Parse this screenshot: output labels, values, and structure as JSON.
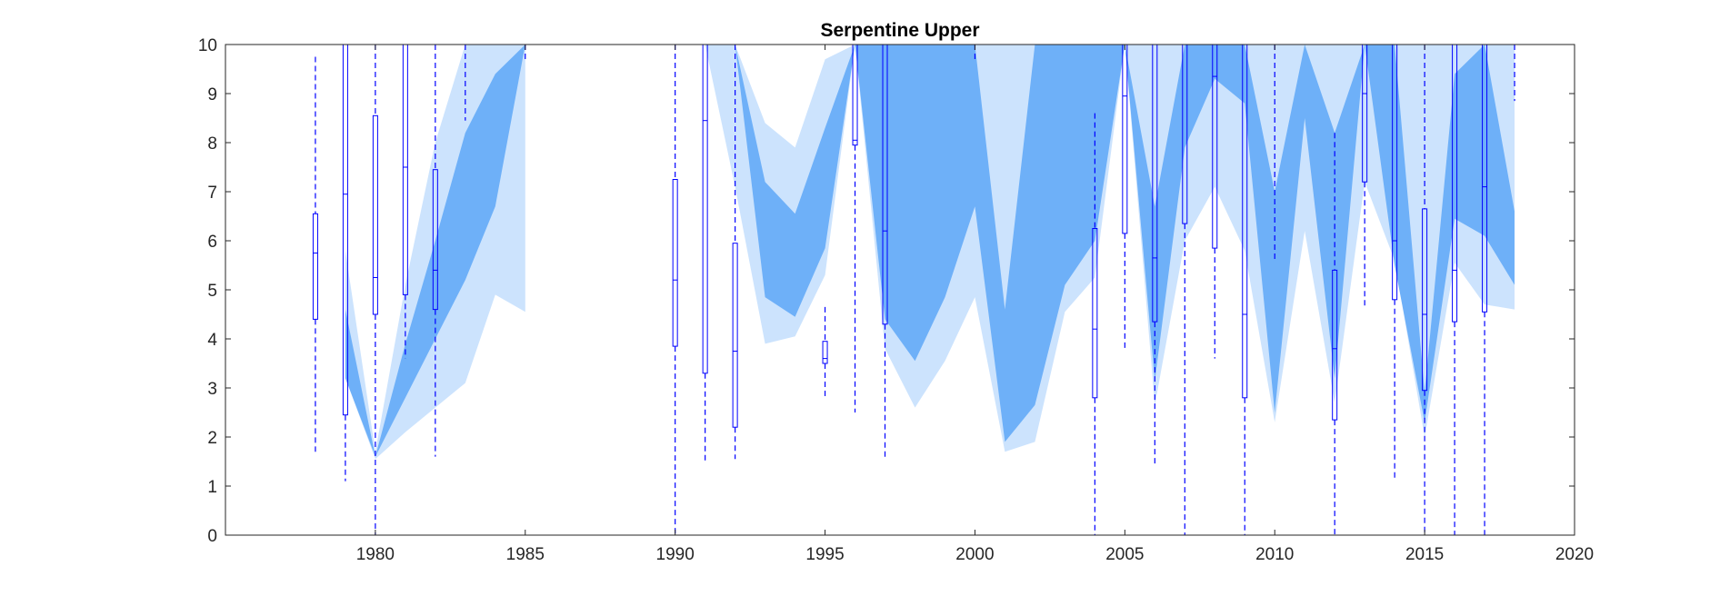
{
  "chart_data": {
    "type": "area",
    "title": "Serpentine Upper",
    "xlabel": "",
    "ylabel": "",
    "xlim": [
      1975,
      2020
    ],
    "ylim": [
      0,
      10
    ],
    "grid": false,
    "legend": "none",
    "x_ticks": [
      1980,
      1985,
      1990,
      1995,
      2000,
      2005,
      2010,
      2015,
      2020
    ],
    "y_ticks": [
      0,
      1,
      2,
      3,
      4,
      5,
      6,
      7,
      8,
      9,
      10
    ],
    "colors": {
      "outer_band": "#cce3fd",
      "inner_band": "#6eb0f8",
      "boxplot": "#0000ff",
      "axes": "#262626"
    },
    "bands": [
      {
        "name": "outer",
        "segments": [
          {
            "x": [
              1979,
              1980,
              1981,
              1982,
              1983,
              1984,
              1985
            ],
            "upper": [
              5.8,
              1.7,
              5.1,
              8.0,
              10,
              10,
              10
            ],
            "lower": [
              3.2,
              1.55,
              2.1,
              2.6,
              3.1,
              4.9,
              4.55
            ]
          },
          {
            "x": [
              1990,
              1991,
              1992,
              1993,
              1994,
              1995,
              1996,
              1997,
              1998,
              1999,
              2000,
              2001,
              2002,
              2003,
              2004,
              2005,
              2006,
              2007,
              2008,
              2009,
              2010,
              2011,
              2012,
              2013,
              2014,
              2015,
              2016,
              2017,
              2018
            ],
            "upper": [
              6.0,
              10,
              10,
              8.4,
              7.9,
              9.7,
              10,
              10,
              10,
              10,
              10,
              10,
              10,
              10,
              10,
              10,
              10,
              10,
              10,
              10,
              10,
              10,
              10,
              10,
              10,
              10,
              10,
              10,
              10
            ],
            "lower": [
              6.0,
              10,
              7.1,
              3.9,
              4.05,
              5.3,
              10,
              3.8,
              2.6,
              3.55,
              4.85,
              1.7,
              1.9,
              4.55,
              5.25,
              10,
              2.65,
              6.0,
              7.1,
              5.8,
              2.3,
              6.2,
              2.7,
              7.2,
              5.6,
              2.0,
              5.55,
              4.7,
              4.6
            ]
          }
        ]
      },
      {
        "name": "inner",
        "segments": [
          {
            "x": [
              1979,
              1980,
              1981,
              1982,
              1983,
              1984,
              1985
            ],
            "upper": [
              4.6,
              1.6,
              3.9,
              6.0,
              8.2,
              9.4,
              10
            ],
            "lower": [
              3.2,
              1.6,
              2.8,
              4.0,
              5.2,
              6.7,
              10
            ]
          },
          {
            "x": [
              1992,
              1993,
              1994,
              1995,
              1996,
              1997,
              1998,
              1999,
              2000,
              2001,
              2002,
              2003,
              2004,
              2005,
              2006,
              2007,
              2008,
              2009,
              2010,
              2011,
              2012,
              2013,
              2014,
              2015,
              2016,
              2017,
              2018
            ],
            "upper": [
              10,
              7.2,
              6.55,
              8.3,
              10,
              10,
              10,
              10,
              10,
              4.6,
              10,
              10,
              10,
              10,
              6.7,
              10,
              10,
              10,
              7.0,
              10,
              8.2,
              10,
              10,
              2.9,
              9.4,
              10,
              6.6
            ],
            "lower": [
              10,
              4.85,
              4.45,
              5.85,
              10,
              4.4,
              3.55,
              4.85,
              6.7,
              1.9,
              2.65,
              5.1,
              6.0,
              10,
              3.15,
              7.9,
              9.3,
              8.8,
              2.5,
              8.5,
              3.2,
              10,
              5.5,
              2.3,
              6.45,
              6.1,
              5.1
            ]
          }
        ]
      }
    ],
    "boxplots": [
      {
        "x": 1978,
        "whisker_low": 1.7,
        "q1": 4.4,
        "median": 5.75,
        "q3": 6.55,
        "whisker_high": 9.75
      },
      {
        "x": 1979,
        "whisker_low": 1.1,
        "q1": 2.45,
        "median": 6.95,
        "q3": 10,
        "whisker_high": 10
      },
      {
        "x": 1980,
        "whisker_low": 0,
        "q1": 4.5,
        "median": 5.25,
        "q3": 8.55,
        "whisker_high": 10
      },
      {
        "x": 1981,
        "whisker_low": 3.6,
        "q1": 4.9,
        "median": 7.5,
        "q3": 10,
        "whisker_high": 10
      },
      {
        "x": 1982,
        "whisker_low": 1.6,
        "q1": 4.6,
        "median": 5.4,
        "q3": 7.45,
        "whisker_high": 10
      },
      {
        "x": 1983,
        "whisker_low": 8.45,
        "q1": 10,
        "median": 10,
        "q3": 10,
        "whisker_high": 10
      },
      {
        "x": 1985,
        "whisker_low": 9.7,
        "q1": 10,
        "median": 10,
        "q3": 10,
        "whisker_high": 10
      },
      {
        "x": 1990,
        "whisker_low": 0,
        "q1": 3.85,
        "median": 5.2,
        "q3": 7.25,
        "whisker_high": 10
      },
      {
        "x": 1991,
        "whisker_low": 1.45,
        "q1": 3.3,
        "median": 8.45,
        "q3": 10,
        "whisker_high": 10
      },
      {
        "x": 1992,
        "whisker_low": 1.55,
        "q1": 2.2,
        "median": 3.75,
        "q3": 5.95,
        "whisker_high": 10
      },
      {
        "x": 1995,
        "whisker_low": 2.8,
        "q1": 3.5,
        "median": 3.6,
        "q3": 3.95,
        "whisker_high": 4.65
      },
      {
        "x": 1996,
        "whisker_low": 2.5,
        "q1": 7.95,
        "median": 8.05,
        "q3": 10,
        "whisker_high": 10
      },
      {
        "x": 1997,
        "whisker_low": 1.55,
        "q1": 4.3,
        "median": 6.2,
        "q3": 10,
        "whisker_high": 10
      },
      {
        "x": 2000,
        "whisker_low": 9.7,
        "q1": 10,
        "median": 10,
        "q3": 10,
        "whisker_high": 10
      },
      {
        "x": 2004,
        "whisker_low": 0,
        "q1": 2.8,
        "median": 4.2,
        "q3": 6.25,
        "whisker_high": 8.6
      },
      {
        "x": 2005,
        "whisker_low": 3.8,
        "q1": 6.15,
        "median": 8.95,
        "q3": 10,
        "whisker_high": 10
      },
      {
        "x": 2006,
        "whisker_low": 1.45,
        "q1": 4.35,
        "median": 5.65,
        "q3": 10,
        "whisker_high": 10
      },
      {
        "x": 2007,
        "whisker_low": 0,
        "q1": 6.35,
        "median": 10,
        "q3": 10,
        "whisker_high": 10
      },
      {
        "x": 2008,
        "whisker_low": 3.6,
        "q1": 5.85,
        "median": 9.35,
        "q3": 10,
        "whisker_high": 10
      },
      {
        "x": 2009,
        "whisker_low": 0,
        "q1": 2.8,
        "median": 4.5,
        "q3": 10,
        "whisker_high": 10
      },
      {
        "x": 2010,
        "whisker_low": 5.6,
        "q1": 10,
        "median": 10,
        "q3": 10,
        "whisker_high": 10
      },
      {
        "x": 2012,
        "whisker_low": 0,
        "q1": 2.35,
        "median": 3.8,
        "q3": 5.4,
        "whisker_high": 8.2
      },
      {
        "x": 2013,
        "whisker_low": 4.65,
        "q1": 7.2,
        "median": 9.0,
        "q3": 10,
        "whisker_high": 10
      },
      {
        "x": 2014,
        "whisker_low": 1.1,
        "q1": 4.8,
        "median": 6.0,
        "q3": 10,
        "whisker_high": 10
      },
      {
        "x": 2015,
        "whisker_low": 0,
        "q1": 2.95,
        "median": 4.5,
        "q3": 6.65,
        "whisker_high": 10
      },
      {
        "x": 2016,
        "whisker_low": 0,
        "q1": 4.35,
        "median": 5.4,
        "q3": 10,
        "whisker_high": 10
      },
      {
        "x": 2017,
        "whisker_low": 0,
        "q1": 4.55,
        "median": 7.1,
        "q3": 10,
        "whisker_high": 10
      },
      {
        "x": 2018,
        "whisker_low": 8.85,
        "q1": 10,
        "median": 10,
        "q3": 10,
        "whisker_high": 10
      }
    ]
  }
}
